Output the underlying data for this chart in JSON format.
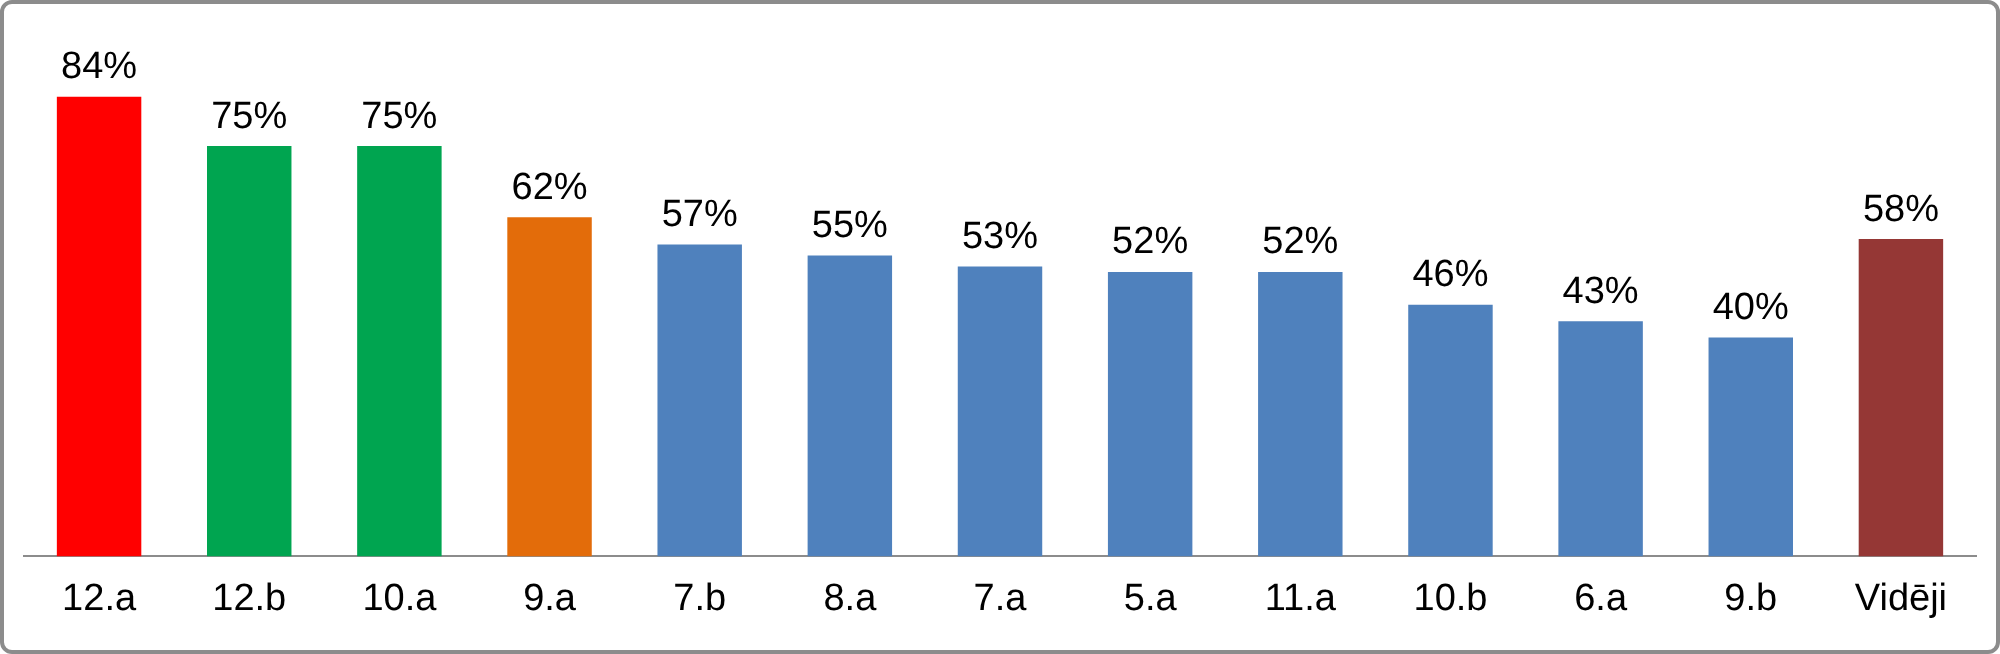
{
  "chart_data": {
    "type": "bar",
    "categories": [
      "12.a",
      "12.b",
      "10.a",
      "9.a",
      "7.b",
      "8.a",
      "7.a",
      "5.a",
      "11.a",
      "10.b",
      "6.a",
      "9.b",
      "Vidēji"
    ],
    "values": [
      84,
      75,
      75,
      62,
      57,
      55,
      53,
      52,
      52,
      46,
      43,
      40,
      58
    ],
    "colors": [
      "#ff0000",
      "#00a550",
      "#00a550",
      "#e36c0a",
      "#4f81bd",
      "#4f81bd",
      "#4f81bd",
      "#4f81bd",
      "#4f81bd",
      "#4f81bd",
      "#4f81bd",
      "#4f81bd",
      "#953735"
    ],
    "value_labels": [
      "84%",
      "75%",
      "75%",
      "62%",
      "57%",
      "55%",
      "53%",
      "52%",
      "52%",
      "46%",
      "43%",
      "40%",
      "58%"
    ],
    "grid": false,
    "legend": false,
    "tick_labels": "x"
  }
}
